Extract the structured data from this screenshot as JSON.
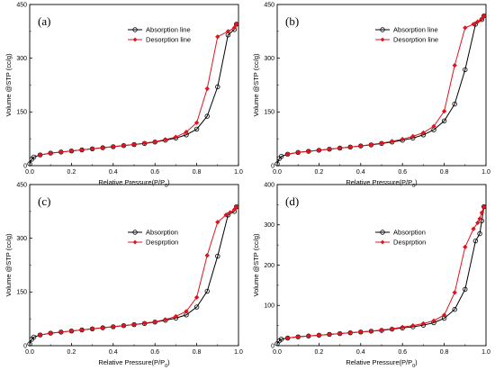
{
  "chart_data": [
    {
      "type": "line",
      "panel_label": "(a)",
      "xlabel_main": "Relative Pressure(P/P",
      "xlabel_sub": "0",
      "xlabel_end": ")",
      "ylabel": "Volume @STP (cc/g)",
      "xlim": [
        0,
        1
      ],
      "ylim": [
        0,
        450
      ],
      "x_ticks": [
        0,
        0.2,
        0.4,
        0.6,
        0.8,
        1
      ],
      "x_tick_labels": [
        "0.0",
        "0.2",
        "0.4",
        "0.6",
        "0.8",
        "1.0"
      ],
      "y_ticks": [
        0,
        150,
        300,
        450
      ],
      "y_tick_labels": [
        "0",
        "150",
        "300",
        "450"
      ],
      "grid": false,
      "legend_position": "top-right",
      "series": [
        {
          "name": "Absorption line",
          "color": "#000000",
          "marker": "open-circle",
          "x": [
            0.0,
            0.01,
            0.02,
            0.05,
            0.1,
            0.15,
            0.2,
            0.25,
            0.3,
            0.35,
            0.4,
            0.45,
            0.5,
            0.55,
            0.6,
            0.65,
            0.7,
            0.75,
            0.8,
            0.85,
            0.9,
            0.95,
            0.98,
            0.99
          ],
          "y": [
            5,
            18,
            24,
            30,
            35,
            38,
            41,
            44,
            47,
            50,
            53,
            56,
            59,
            62,
            66,
            71,
            77,
            86,
            102,
            138,
            220,
            365,
            380,
            395
          ]
        },
        {
          "name": "Desorption line",
          "color": "#e0141e",
          "marker": "filled-diamond",
          "x": [
            0.99,
            0.98,
            0.95,
            0.9,
            0.85,
            0.8,
            0.75,
            0.7,
            0.65,
            0.6,
            0.55,
            0.5,
            0.45,
            0.4,
            0.35,
            0.3,
            0.25,
            0.2,
            0.15,
            0.1,
            0.05
          ],
          "y": [
            395,
            385,
            375,
            360,
            215,
            120,
            94,
            80,
            73,
            67,
            63,
            59,
            56,
            53,
            50,
            47,
            44,
            41,
            38,
            35,
            30
          ]
        }
      ]
    },
    {
      "type": "line",
      "panel_label": "(b)",
      "xlabel_main": "Relative Pressure(P/P",
      "xlabel_sub": "0",
      "xlabel_end": ")",
      "ylabel": "Volume @STP (cc/g)",
      "xlim": [
        0,
        1
      ],
      "ylim": [
        0,
        450
      ],
      "x_ticks": [
        0,
        0.2,
        0.4,
        0.6,
        0.8,
        1
      ],
      "x_tick_labels": [
        "0.0",
        "0.2",
        "0.4",
        "0.6",
        "0.8",
        "1.0"
      ],
      "y_ticks": [
        0,
        150,
        300,
        450
      ],
      "y_tick_labels": [
        "0",
        "150",
        "300",
        "450"
      ],
      "grid": false,
      "legend_position": "top-right",
      "series": [
        {
          "name": "Absorption line",
          "color": "#000000",
          "marker": "open-circle",
          "x": [
            0.0,
            0.01,
            0.02,
            0.05,
            0.1,
            0.15,
            0.2,
            0.25,
            0.3,
            0.35,
            0.4,
            0.45,
            0.5,
            0.55,
            0.6,
            0.65,
            0.7,
            0.75,
            0.8,
            0.85,
            0.9,
            0.95,
            0.98,
            0.99
          ],
          "y": [
            5,
            20,
            26,
            32,
            37,
            40,
            43,
            46,
            49,
            52,
            55,
            58,
            62,
            66,
            71,
            77,
            86,
            100,
            125,
            172,
            268,
            395,
            408,
            418
          ]
        },
        {
          "name": "Desorption line",
          "color": "#e0141e",
          "marker": "filled-diamond",
          "x": [
            0.99,
            0.98,
            0.96,
            0.94,
            0.9,
            0.85,
            0.8,
            0.75,
            0.7,
            0.65,
            0.6,
            0.55,
            0.5,
            0.45,
            0.4,
            0.35,
            0.3,
            0.25,
            0.2,
            0.15,
            0.1,
            0.05
          ],
          "y": [
            418,
            410,
            402,
            395,
            385,
            280,
            152,
            110,
            92,
            82,
            74,
            68,
            63,
            59,
            55,
            52,
            49,
            46,
            43,
            40,
            37,
            32
          ]
        }
      ]
    },
    {
      "type": "line",
      "panel_label": "(c)",
      "xlabel_main": "Relative Pressure(P/P",
      "xlabel_sub": "0",
      "xlabel_end": ")",
      "ylabel": "Volume @STP (cc/g)",
      "xlim": [
        0,
        1
      ],
      "ylim": [
        0,
        450
      ],
      "x_ticks": [
        0,
        0.2,
        0.4,
        0.6,
        0.8,
        1
      ],
      "x_tick_labels": [
        "0.0",
        "0.2",
        "0.4",
        "0.6",
        "0.8",
        "1.0"
      ],
      "y_ticks": [
        0,
        150,
        300,
        450
      ],
      "y_tick_labels": [
        "0",
        "150",
        "300",
        "450"
      ],
      "grid": false,
      "legend_position": "top-right",
      "series": [
        {
          "name": "Absorption",
          "color": "#000000",
          "marker": "open-circle",
          "x": [
            0.0,
            0.01,
            0.02,
            0.05,
            0.1,
            0.15,
            0.2,
            0.25,
            0.3,
            0.35,
            0.4,
            0.45,
            0.5,
            0.55,
            0.6,
            0.65,
            0.7,
            0.75,
            0.8,
            0.85,
            0.9,
            0.95,
            0.98,
            0.99
          ],
          "y": [
            5,
            18,
            24,
            30,
            35,
            38,
            41,
            44,
            47,
            50,
            53,
            56,
            59,
            62,
            66,
            71,
            77,
            86,
            108,
            152,
            250,
            365,
            375,
            388
          ]
        },
        {
          "name": "Desprption",
          "color": "#e0141e",
          "marker": "filled-diamond",
          "x": [
            0.99,
            0.98,
            0.96,
            0.94,
            0.9,
            0.85,
            0.8,
            0.75,
            0.7,
            0.65,
            0.6,
            0.55,
            0.5,
            0.45,
            0.4,
            0.35,
            0.3,
            0.25,
            0.2,
            0.15,
            0.1,
            0.05
          ],
          "y": [
            388,
            380,
            372,
            365,
            345,
            252,
            135,
            96,
            82,
            73,
            67,
            63,
            59,
            56,
            53,
            50,
            47,
            44,
            41,
            38,
            35,
            30
          ]
        }
      ]
    },
    {
      "type": "line",
      "panel_label": "(d)",
      "xlabel_main": "Relative Pressure(P/P",
      "xlabel_sub": "0",
      "xlabel_end": ")",
      "ylabel": "Volume @STP (cc/g)",
      "xlim": [
        0,
        1
      ],
      "ylim": [
        0,
        400
      ],
      "x_ticks": [
        0,
        0.2,
        0.4,
        0.6,
        0.8,
        1
      ],
      "x_tick_labels": [
        "0.0",
        "0.2",
        "0.4",
        "0.6",
        "0.8",
        "1.0"
      ],
      "y_ticks": [
        0,
        100,
        200,
        300,
        400
      ],
      "y_tick_labels": [
        "0",
        "100",
        "200",
        "300",
        "400"
      ],
      "grid": false,
      "legend_position": "top-right",
      "series": [
        {
          "name": "Absorption",
          "color": "#000000",
          "marker": "open-circle",
          "x": [
            0.0,
            0.01,
            0.02,
            0.05,
            0.1,
            0.15,
            0.2,
            0.25,
            0.3,
            0.35,
            0.4,
            0.45,
            0.5,
            0.55,
            0.6,
            0.65,
            0.7,
            0.75,
            0.8,
            0.85,
            0.9,
            0.95,
            0.97,
            0.98,
            0.99
          ],
          "y": [
            5,
            12,
            16,
            19,
            22,
            24,
            26,
            28,
            30,
            32,
            34,
            36,
            38,
            41,
            44,
            47,
            51,
            57,
            68,
            90,
            140,
            260,
            278,
            310,
            345
          ]
        },
        {
          "name": "Desprption",
          "color": "#e0141e",
          "marker": "filled-diamond",
          "x": [
            0.99,
            0.98,
            0.97,
            0.96,
            0.94,
            0.9,
            0.85,
            0.8,
            0.75,
            0.7,
            0.65,
            0.6,
            0.55,
            0.5,
            0.45,
            0.4,
            0.35,
            0.3,
            0.25,
            0.2,
            0.15,
            0.1,
            0.05
          ],
          "y": [
            345,
            330,
            315,
            305,
            290,
            245,
            132,
            76,
            62,
            55,
            50,
            46,
            42,
            39,
            36,
            34,
            32,
            30,
            28,
            26,
            24,
            22,
            19
          ]
        }
      ]
    }
  ]
}
